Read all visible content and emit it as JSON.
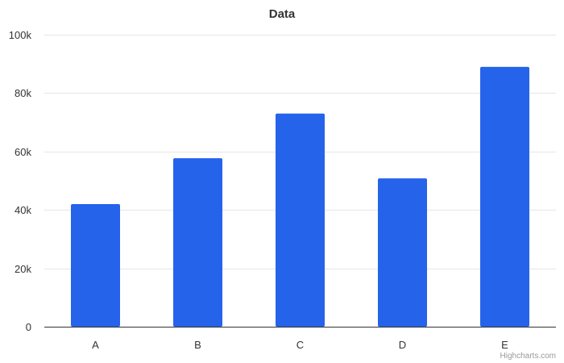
{
  "chart_data": {
    "type": "bar",
    "title": "Data",
    "categories": [
      "A",
      "B",
      "C",
      "D",
      "E"
    ],
    "values": [
      42000,
      57700,
      73000,
      50800,
      89000
    ],
    "ylim": [
      0,
      100000
    ],
    "yticks": [
      0,
      20000,
      40000,
      60000,
      80000,
      100000
    ],
    "ytick_labels": [
      "0",
      "20k",
      "40k",
      "60k",
      "80k",
      "100k"
    ],
    "xlabel": "",
    "ylabel": "",
    "grid": true,
    "color": "#2563eb"
  },
  "credits": "Highcharts.com"
}
